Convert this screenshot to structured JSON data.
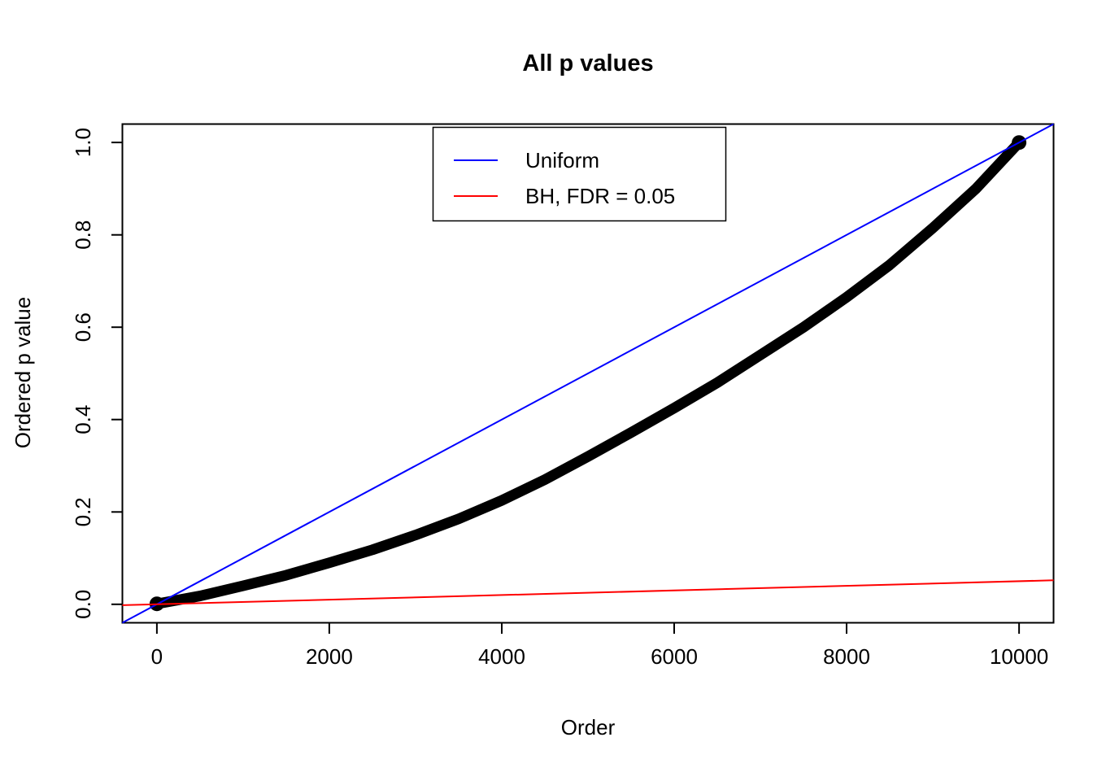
{
  "title": "All p values",
  "axes": {
    "x_label": "Order",
    "y_label": "Ordered p value",
    "x_ticks": [
      "0",
      "2000",
      "4000",
      "6000",
      "8000",
      "10000"
    ],
    "y_ticks": [
      "0.0",
      "0.2",
      "0.4",
      "0.6",
      "0.8",
      "1.0"
    ]
  },
  "legend": {
    "items": [
      {
        "label": "Uniform",
        "color": "#0000ff"
      },
      {
        "label": "BH, FDR = 0.05",
        "color": "#ff0000"
      }
    ]
  },
  "colors": {
    "points": "#000000",
    "uniform_line": "#0000ff",
    "bh_line": "#ff0000",
    "axis": "#000000",
    "background": "#ffffff"
  },
  "chart_data": {
    "type": "scatter",
    "title": "All p values",
    "xlabel": "Order",
    "ylabel": "Ordered p value",
    "xlim": [
      -400,
      10400
    ],
    "ylim": [
      -0.04,
      1.04
    ],
    "x_tick_values": [
      0,
      2000,
      4000,
      6000,
      8000,
      10000
    ],
    "y_tick_values": [
      0.0,
      0.2,
      0.4,
      0.6,
      0.8,
      1.0
    ],
    "grid": false,
    "legend_position": "top-center",
    "n_points_depicted": 10000,
    "series": [
      {
        "name": "Ordered p values",
        "type": "points",
        "color": "#000000",
        "x": [
          0,
          500,
          1000,
          1500,
          2000,
          2500,
          3000,
          3500,
          4000,
          4500,
          5000,
          5500,
          6000,
          6500,
          7000,
          7500,
          8000,
          8500,
          9000,
          9500,
          10000
        ],
        "y": [
          0.001,
          0.018,
          0.04,
          0.063,
          0.09,
          0.118,
          0.15,
          0.185,
          0.225,
          0.27,
          0.32,
          0.372,
          0.425,
          0.48,
          0.54,
          0.6,
          0.665,
          0.735,
          0.815,
          0.9,
          1.0
        ]
      },
      {
        "name": "Uniform",
        "type": "abline",
        "color": "#0000ff",
        "intercept": 0,
        "slope": 0.0001
      },
      {
        "name": "BH, FDR = 0.05",
        "type": "abline",
        "color": "#ff0000",
        "intercept": 0,
        "slope": 5e-06
      }
    ]
  }
}
